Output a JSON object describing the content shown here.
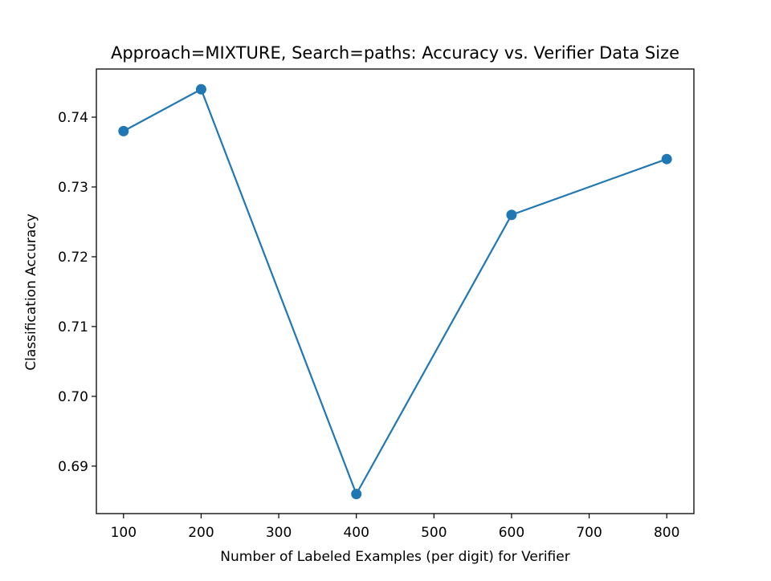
{
  "chart_data": {
    "type": "line",
    "title": "Approach=MIXTURE, Search=paths: Accuracy vs. Verifier Data Size",
    "xlabel": "Number of Labeled Examples (per digit) for Verifier",
    "ylabel": "Classification Accuracy",
    "xlim": [
      65,
      835
    ],
    "ylim": [
      0.6832,
      0.7469
    ],
    "xticks": [
      100,
      200,
      300,
      400,
      500,
      600,
      700,
      800
    ],
    "xtick_labels": [
      "100",
      "200",
      "300",
      "400",
      "500",
      "600",
      "700",
      "800"
    ],
    "yticks": [
      0.69,
      0.7,
      0.71,
      0.72,
      0.73,
      0.74
    ],
    "ytick_labels": [
      "0.69",
      "0.70",
      "0.71",
      "0.72",
      "0.73",
      "0.74"
    ],
    "grid": false,
    "legend": false,
    "series": [
      {
        "x": [
          100,
          200,
          400,
          600,
          800
        ],
        "y": [
          0.738,
          0.744,
          0.686,
          0.726,
          0.734
        ],
        "color": "#1f77b4",
        "marker": "circle"
      }
    ]
  }
}
